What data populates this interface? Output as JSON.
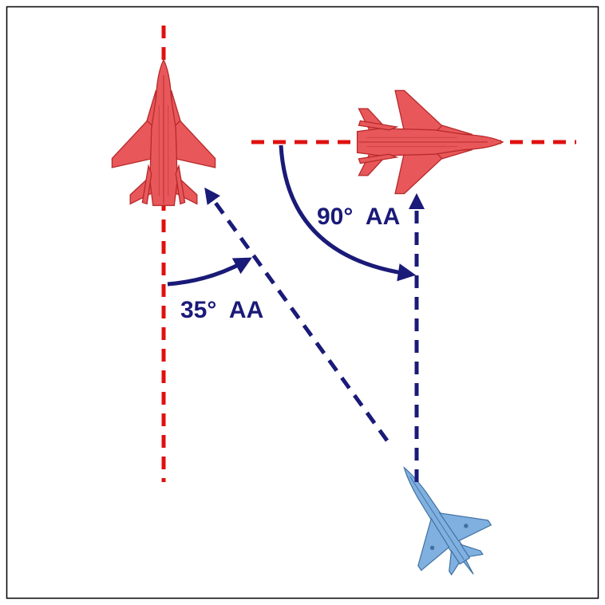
{
  "diagram": {
    "labels": {
      "aa_35": "35°  AA",
      "aa_90": "90°  AA"
    }
  },
  "colors": {
    "hostile_aircraft": "#e8585a",
    "hostile_aircraft_dark": "#b82a2c",
    "friendly_aircraft": "#7fb0e0",
    "friendly_aircraft_dark": "#3f6f9f",
    "heading_line": "#e01010",
    "line_of_sight": "#1a1a78",
    "label": "#1a1a78",
    "frame": "#000000"
  }
}
